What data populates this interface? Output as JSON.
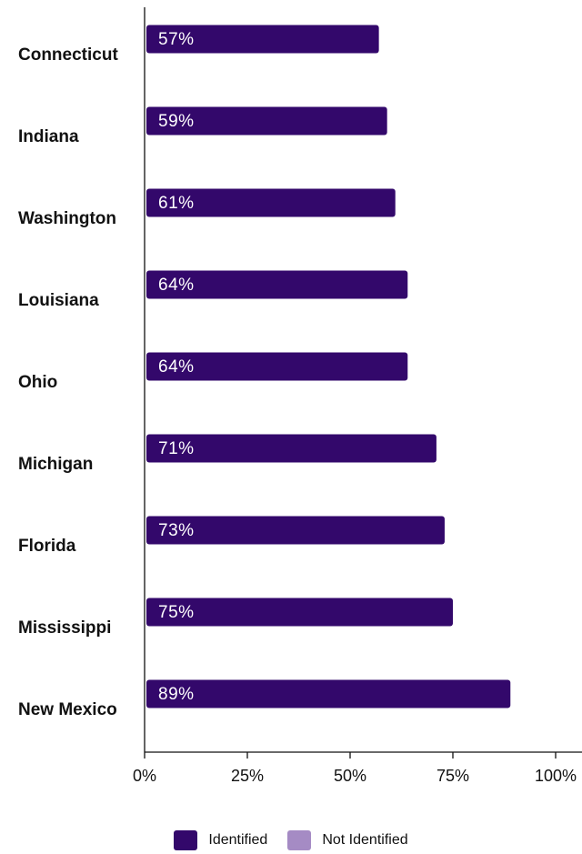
{
  "colors": {
    "identified": "#33086b",
    "not_identified": "#a58bc4",
    "axis": "#111111"
  },
  "chart_data": {
    "type": "bar",
    "orientation": "horizontal",
    "categories": [
      "Connecticut",
      "Indiana",
      "Washington",
      "Louisiana",
      "Ohio",
      "Michigan",
      "Florida",
      "Mississippi",
      "New Mexico"
    ],
    "series": [
      {
        "name": "Identified",
        "values": [
          57,
          59,
          61,
          64,
          64,
          71,
          73,
          75,
          89
        ],
        "data_labels": [
          "57%",
          "59%",
          "61%",
          "64%",
          "64%",
          "71%",
          "73%",
          "75%",
          "89%"
        ]
      }
    ],
    "xlim": [
      0,
      100
    ],
    "xticks": [
      0,
      25,
      50,
      75,
      100
    ],
    "xtick_labels": [
      "0%",
      "25%",
      "50%",
      "75%",
      "100%"
    ],
    "grid": false,
    "legend_position": "bottom-center"
  },
  "legend": {
    "items": [
      {
        "label": "Identified",
        "color": "#33086b"
      },
      {
        "label": "Not Identified",
        "color": "#a58bc4"
      }
    ]
  }
}
